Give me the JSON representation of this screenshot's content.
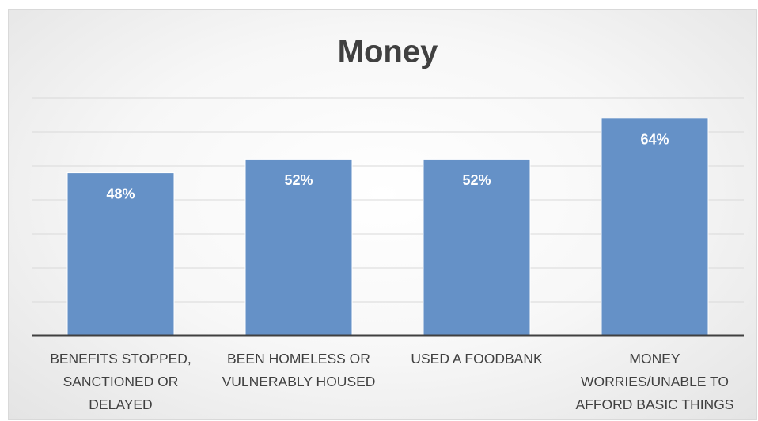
{
  "chart_data": {
    "type": "bar",
    "title": "Money",
    "categories": [
      "BENEFITS STOPPED, SANCTIONED OR DELAYED",
      "BEEN HOMELESS OR VULNERABLY HOUSED",
      "USED A FOODBANK",
      "MONEY WORRIES/UNABLE TO AFFORD BASIC THINGS"
    ],
    "values": [
      48,
      52,
      52,
      64
    ],
    "value_labels": [
      "48%",
      "52%",
      "52%",
      "64%"
    ],
    "color": "#6591c7",
    "ylim": [
      0,
      70
    ],
    "yticks": [
      0,
      10,
      20,
      30,
      40,
      50,
      60,
      70
    ],
    "grid": true
  }
}
